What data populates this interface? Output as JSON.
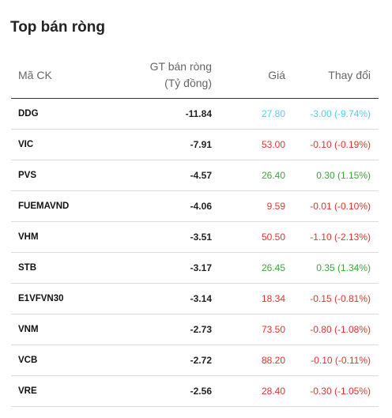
{
  "title": "Top bán ròng",
  "headers": {
    "code": "Mã CK",
    "value_line1": "GT bán ròng",
    "value_line2": "(Tỷ đồng)",
    "price": "Giá",
    "change": "Thay đổi"
  },
  "colors": {
    "down": "#e0342f",
    "up": "#3ea33a",
    "floor": "#52cfe6"
  },
  "rows": [
    {
      "code": "DDG",
      "value": "-11.84",
      "price": "27.80",
      "change": "-3.00 (-9.74%)",
      "trend": "floor"
    },
    {
      "code": "VIC",
      "value": "-7.91",
      "price": "53.00",
      "change": "-0.10 (-0.19%)",
      "trend": "down"
    },
    {
      "code": "PVS",
      "value": "-4.57",
      "price": "26.40",
      "change": "0.30 (1.15%)",
      "trend": "up"
    },
    {
      "code": "FUEMAVND",
      "value": "-4.06",
      "price": "9.59",
      "change": "-0.01 (-0.10%)",
      "trend": "down"
    },
    {
      "code": "VHM",
      "value": "-3.51",
      "price": "50.50",
      "change": "-1.10 (-2.13%)",
      "trend": "down"
    },
    {
      "code": "STB",
      "value": "-3.17",
      "price": "26.45",
      "change": "0.35 (1.34%)",
      "trend": "up"
    },
    {
      "code": "E1VFVN30",
      "value": "-3.14",
      "price": "18.34",
      "change": "-0.15 (-0.81%)",
      "trend": "down"
    },
    {
      "code": "VNM",
      "value": "-2.73",
      "price": "73.50",
      "change": "-0.80 (-1.08%)",
      "trend": "down"
    },
    {
      "code": "VCB",
      "value": "-2.72",
      "price": "88.20",
      "change": "-0.10 (-0.11%)",
      "trend": "down"
    },
    {
      "code": "VRE",
      "value": "-2.56",
      "price": "28.40",
      "change": "-0.30 (-1.05%)",
      "trend": "down"
    }
  ]
}
